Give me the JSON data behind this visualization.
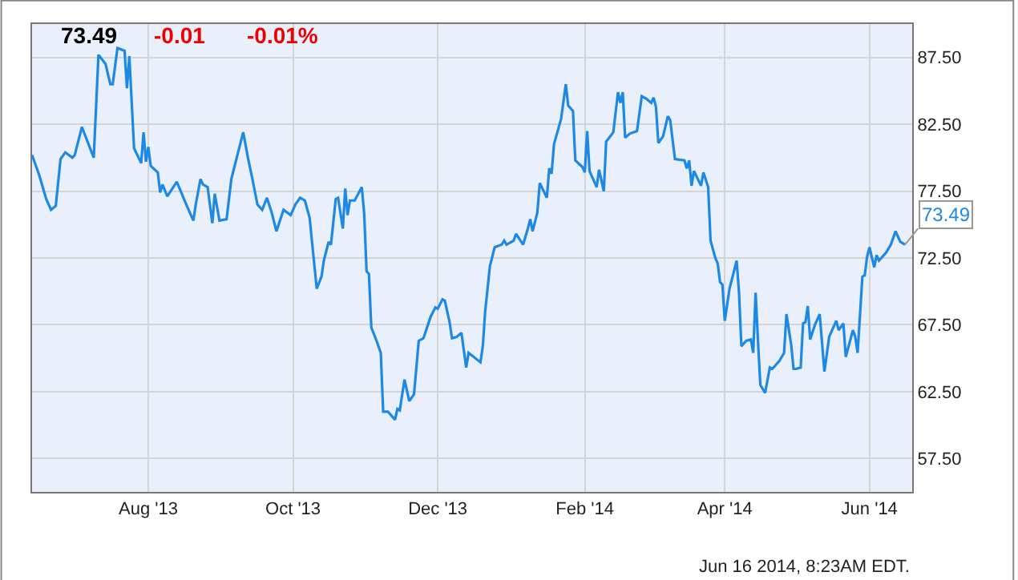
{
  "chart_data": {
    "type": "line",
    "annotations": [
      "73.49",
      "-0.01",
      "-0.01%",
      {
        "text": "73.49",
        "x": "2014-06-16",
        "y": 73.49
      },
      "Jun 16 2014, 8:23AM EDT."
    ],
    "x": [
      "2013-06-13",
      "2013-06-16",
      "2013-06-19",
      "2013-06-21",
      "2013-06-23",
      "2013-06-25",
      "2013-06-27",
      "2013-06-30",
      "2013-07-01",
      "2013-07-04",
      "2013-07-09",
      "2013-07-11",
      "2013-07-14",
      "2013-07-16",
      "2013-07-17",
      "2013-07-19",
      "2013-07-22",
      "2013-07-23",
      "2013-07-24",
      "2013-07-26",
      "2013-07-29",
      "2013-07-30",
      "2013-07-31",
      "2013-08-01",
      "2013-08-02",
      "2013-08-05",
      "2013-08-06",
      "2013-08-07",
      "2013-08-09",
      "2013-08-13",
      "2013-08-17",
      "2013-08-20",
      "2013-08-21",
      "2013-08-23",
      "2013-08-24",
      "2013-08-26",
      "2013-08-28",
      "2013-08-29",
      "2013-08-31",
      "2013-09-03",
      "2013-09-05",
      "2013-09-07",
      "2013-09-10",
      "2013-09-12",
      "2013-09-14",
      "2013-09-16",
      "2013-09-18",
      "2013-09-20",
      "2013-09-22",
      "2013-09-24",
      "2013-09-27",
      "2013-09-30",
      "2013-10-02",
      "2013-10-04",
      "2013-10-06",
      "2013-10-08",
      "2013-10-11",
      "2013-10-13",
      "2013-10-14",
      "2013-10-16",
      "2013-10-17",
      "2013-10-19",
      "2013-10-20",
      "2013-10-22",
      "2013-10-23",
      "2013-10-24",
      "2013-10-25",
      "2013-10-27",
      "2013-10-30",
      "2013-10-31",
      "2013-11-01",
      "2013-11-02",
      "2013-11-03",
      "2013-11-05",
      "2013-11-07",
      "2013-11-08",
      "2013-11-10",
      "2013-11-13",
      "2013-11-14",
      "2013-11-15",
      "2013-11-17",
      "2013-11-19",
      "2013-11-21",
      "2013-11-23",
      "2013-11-25",
      "2013-11-28",
      "2013-11-30",
      "2013-12-01",
      "2013-12-03",
      "2013-12-04",
      "2013-12-06",
      "2013-12-07",
      "2013-12-09",
      "2013-12-11",
      "2013-12-13",
      "2013-12-14",
      "2013-12-19",
      "2013-12-20",
      "2013-12-21",
      "2013-12-23",
      "2013-12-25",
      "2013-12-28",
      "2013-12-29",
      "2013-12-30",
      "2014-01-02",
      "2014-01-03",
      "2014-01-06",
      "2014-01-08",
      "2014-01-09",
      "2014-01-10",
      "2014-01-12",
      "2014-01-13",
      "2014-01-16",
      "2014-01-17",
      "2014-01-18",
      "2014-01-19",
      "2014-01-22",
      "2014-01-24",
      "2014-01-25",
      "2014-01-27",
      "2014-01-28",
      "2014-01-31",
      "2014-02-01",
      "2014-02-02",
      "2014-02-03",
      "2014-02-06",
      "2014-02-07",
      "2014-02-09",
      "2014-02-10",
      "2014-02-13",
      "2014-02-15",
      "2014-02-16",
      "2014-02-17",
      "2014-02-18",
      "2014-02-20",
      "2014-02-23",
      "2014-02-25",
      "2014-02-27",
      "2014-03-01",
      "2014-03-02",
      "2014-03-03",
      "2014-03-04",
      "2014-03-06",
      "2014-03-08",
      "2014-03-09",
      "2014-03-11",
      "2014-03-15",
      "2014-03-16",
      "2014-03-17",
      "2014-03-18",
      "2014-03-19",
      "2014-03-22",
      "2014-03-23",
      "2014-03-25",
      "2014-03-26",
      "2014-03-28",
      "2014-03-29",
      "2014-03-30",
      "2014-03-31",
      "2014-04-01",
      "2014-04-03",
      "2014-04-06",
      "2014-04-07",
      "2014-04-08",
      "2014-04-10",
      "2014-04-12",
      "2014-04-13",
      "2014-04-14",
      "2014-04-15",
      "2014-04-16",
      "2014-04-18",
      "2014-04-20",
      "2014-04-21",
      "2014-04-24",
      "2014-04-26",
      "2014-04-27",
      "2014-04-29",
      "2014-04-30",
      "2014-05-01",
      "2014-05-03",
      "2014-05-04",
      "2014-05-05",
      "2014-05-06",
      "2014-05-07",
      "2014-05-09",
      "2014-05-11",
      "2014-05-13",
      "2014-05-15",
      "2014-05-18",
      "2014-05-19",
      "2014-05-21",
      "2014-05-22",
      "2014-05-25",
      "2014-05-26",
      "2014-05-27",
      "2014-05-29",
      "2014-05-30",
      "2014-05-31",
      "2014-06-01",
      "2014-06-03",
      "2014-06-04",
      "2014-06-05",
      "2014-06-08",
      "2014-06-10",
      "2014-06-12",
      "2014-06-14",
      "2014-06-16"
    ],
    "series": [
      {
        "color": "#1e88e5",
        "values": [
          80.2,
          78.7,
          76.9,
          76.1,
          76.4,
          79.9,
          80.4,
          80.0,
          80.2,
          82.3,
          80.0,
          87.7,
          87.0,
          85.5,
          85.5,
          88.2,
          88.0,
          85.2,
          87.6,
          80.7,
          79.6,
          81.9,
          79.7,
          80.8,
          79.4,
          78.9,
          77.4,
          78.0,
          77.1,
          78.2,
          76.5,
          75.3,
          76.5,
          78.4,
          78.0,
          77.8,
          75.1,
          77.3,
          75.3,
          75.4,
          78.4,
          79.8,
          81.9,
          80.0,
          78.3,
          76.5,
          76.1,
          77.0,
          75.9,
          74.5,
          76.1,
          75.7,
          76.5,
          77.0,
          76.8,
          75.5,
          70.2,
          71.1,
          72.3,
          73.7,
          73.5,
          76.9,
          77.0,
          74.7,
          77.7,
          75.7,
          76.8,
          76.8,
          77.8,
          75.8,
          71.5,
          71.3,
          67.3,
          66.4,
          65.4,
          61.0,
          61.0,
          60.4,
          61.2,
          61.1,
          63.4,
          61.8,
          62.3,
          66.3,
          66.5,
          68.1,
          68.8,
          68.7,
          69.4,
          69.3,
          67.7,
          66.5,
          66.6,
          66.9,
          64.3,
          65.4,
          64.7,
          65.9,
          68.5,
          71.9,
          73.3,
          73.5,
          73.8,
          73.5,
          73.8,
          74.3,
          73.5,
          74.7,
          75.4,
          74.5,
          75.9,
          78.1,
          77.0,
          79.2,
          78.8,
          81.0,
          82.9,
          85.5,
          83.9,
          83.5,
          79.8,
          79.3,
          78.9,
          82.0,
          79.0,
          77.8,
          79.1,
          77.5,
          81.2,
          81.9,
          84.9,
          84.1,
          84.9,
          81.5,
          81.8,
          82.0,
          84.6,
          84.4,
          84.1,
          84.5,
          83.8,
          81.1,
          81.6,
          83.1,
          82.8,
          79.9,
          79.8,
          79.2,
          79.8,
          77.9,
          79.0,
          77.9,
          78.9,
          77.8,
          73.8,
          72.5,
          72.1,
          70.7,
          70.5,
          67.8,
          70.2,
          72.3,
          69.9,
          65.9,
          66.3,
          66.4,
          65.4,
          69.9,
          66.3,
          63.0,
          62.4,
          64.3,
          64.2,
          64.8,
          65.4,
          68.3,
          66.0,
          64.2,
          64.2,
          64.3,
          67.6,
          67.7,
          68.9,
          66.4,
          67.5,
          68.3,
          64.0,
          66.6,
          67.8,
          67.1,
          67.6,
          65.1,
          67.1,
          66.6,
          65.4,
          71.1,
          71.2,
          72.6,
          73.3,
          71.8,
          72.7,
          72.3,
          72.9,
          73.5,
          74.5,
          73.7,
          73.49
        ]
      }
    ],
    "xlim": [
      "2013-06-13",
      "2014-06-19"
    ],
    "xticks": [
      {
        "value": "2013-08-01",
        "label": "Aug '13"
      },
      {
        "value": "2013-10-01",
        "label": "Oct '13"
      },
      {
        "value": "2013-12-01",
        "label": "Dec '13"
      },
      {
        "value": "2014-02-01",
        "label": "Feb '14"
      },
      {
        "value": "2014-04-01",
        "label": "Apr '14"
      },
      {
        "value": "2014-06-01",
        "label": "Jun '14"
      }
    ],
    "ylim": [
      55,
      90
    ],
    "yticks": [
      {
        "value": 57.5,
        "label": "57.50"
      },
      {
        "value": 62.5,
        "label": "62.50"
      },
      {
        "value": 67.5,
        "label": "67.50"
      },
      {
        "value": 72.5,
        "label": "72.50"
      },
      {
        "value": 77.5,
        "label": "77.50"
      },
      {
        "value": 82.5,
        "label": "82.50"
      },
      {
        "value": 87.5,
        "label": "87.50"
      }
    ],
    "grid": true,
    "line_style": "solid",
    "marker": "none"
  }
}
